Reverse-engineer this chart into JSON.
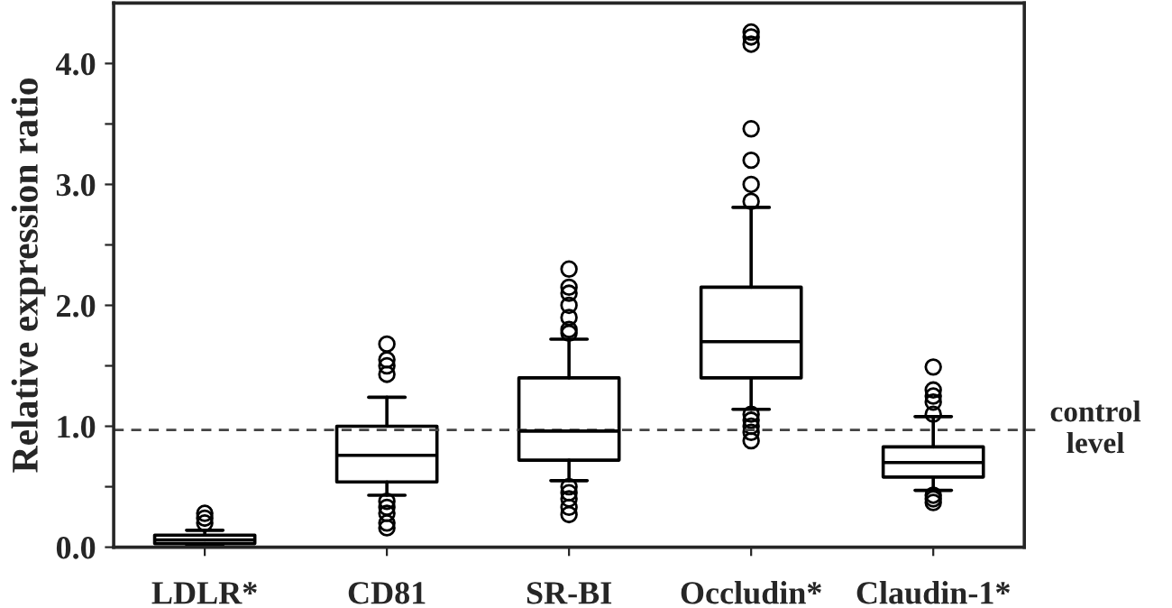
{
  "chart_data": {
    "type": "box",
    "ylabel": "Relative expression ratio",
    "categories": [
      "LDLR*",
      "CD81",
      "SR-BI",
      "Occludin*",
      "Claudin-1*"
    ],
    "boxes": [
      {
        "low": 0.01,
        "q1": 0.03,
        "median": 0.06,
        "q3": 0.1,
        "high": 0.14,
        "outliers": [
          0.2,
          0.24,
          0.28
        ]
      },
      {
        "low": 0.43,
        "q1": 0.54,
        "median": 0.76,
        "q3": 1.0,
        "high": 1.24,
        "outliers": [
          1.43,
          1.5,
          1.55,
          1.68,
          0.38,
          0.33,
          0.28,
          0.2,
          0.16
        ]
      },
      {
        "low": 0.55,
        "q1": 0.72,
        "median": 0.96,
        "q3": 1.4,
        "high": 1.72,
        "outliers": [
          1.77,
          1.8,
          1.9,
          2.0,
          2.1,
          2.15,
          2.3,
          0.5,
          0.45,
          0.4,
          0.33,
          0.27
        ]
      },
      {
        "low": 1.14,
        "q1": 1.4,
        "median": 1.7,
        "q3": 2.15,
        "high": 2.81,
        "outliers": [
          2.86,
          3.0,
          3.2,
          3.46,
          4.16,
          4.22,
          4.26,
          1.1,
          1.05,
          1.0,
          0.95,
          0.88
        ]
      },
      {
        "low": 0.47,
        "q1": 0.58,
        "median": 0.7,
        "q3": 0.83,
        "high": 1.08,
        "outliers": [
          1.1,
          1.2,
          1.25,
          1.3,
          1.49,
          0.43,
          0.4,
          0.37
        ]
      }
    ],
    "ylim": [
      0,
      4.5
    ],
    "yticks": [
      {
        "value": 0,
        "label": "0.0"
      },
      {
        "value": 0.5,
        "label": null
      },
      {
        "value": 1,
        "label": "1.0"
      },
      {
        "value": 1.5,
        "label": null
      },
      {
        "value": 2,
        "label": "2.0"
      },
      {
        "value": 2.5,
        "label": null
      },
      {
        "value": 3,
        "label": "3.0"
      },
      {
        "value": 3.5,
        "label": null
      },
      {
        "value": 4,
        "label": "4.0"
      }
    ],
    "ref_lines": [
      {
        "axis": "y",
        "value": 0.97,
        "label": "control level",
        "line_style": "dashed",
        "color": "#444444"
      }
    ],
    "grid": false
  }
}
